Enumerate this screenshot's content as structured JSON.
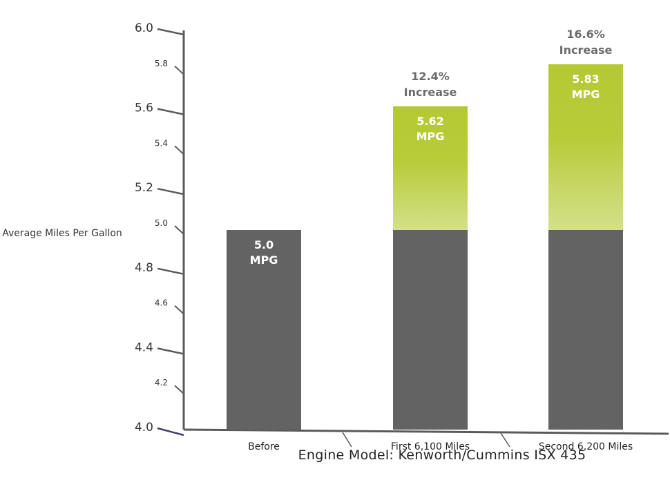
{
  "chart_data": {
    "type": "bar",
    "title": "",
    "ylabel": "Average Miles Per Gallon",
    "xlabel": "",
    "caption": "Engine Model: Kenworth/Cummins ISX 435",
    "ylim": [
      4.0,
      6.0
    ],
    "yticks": [
      4.0,
      4.2,
      4.4,
      4.6,
      4.8,
      5.0,
      5.2,
      5.4,
      5.6,
      5.8,
      6.0
    ],
    "ytick_labels": [
      "4.0",
      "4.2",
      "4.4",
      "4.6",
      "4.8",
      "5.0",
      "5.2",
      "5.4",
      "5.6",
      "5.8",
      "6.0"
    ],
    "major_ticks": [
      4.0,
      4.4,
      4.8,
      5.2,
      5.6,
      6.0
    ],
    "categories": [
      "Before",
      "First 6,100 Miles",
      "Second 6,200 Miles"
    ],
    "baseline": 5.0,
    "values": [
      5.0,
      5.62,
      5.83
    ],
    "value_labels": [
      [
        "5.0",
        "MPG"
      ],
      [
        "5.62",
        "MPG"
      ],
      [
        "5.83",
        "MPG"
      ]
    ],
    "annotations": [
      null,
      [
        "12.4%",
        "Increase"
      ],
      [
        "16.6%",
        "Increase"
      ]
    ],
    "colors": {
      "base": "#636363",
      "gain_top": "#b5c934",
      "gain_bottom": "#d4e08a",
      "axis": "#5a5a5a",
      "annotation": "#6b6b6b"
    }
  }
}
